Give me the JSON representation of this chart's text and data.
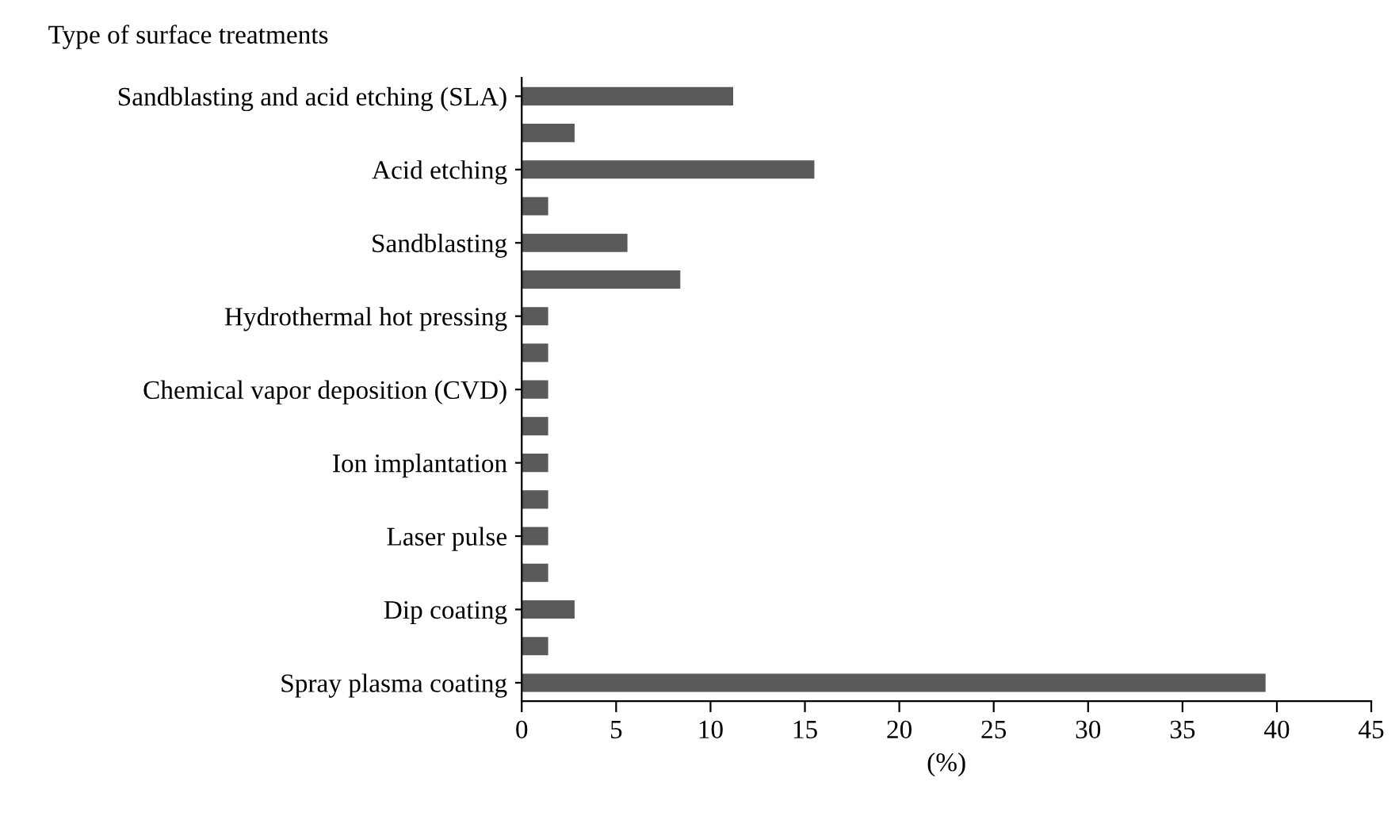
{
  "chart_data": {
    "type": "bar",
    "orientation": "horizontal",
    "ylabel": "Type of surface treatments",
    "xlabel": "(%)",
    "categories": [
      "Sandblasting and acid etching (SLA)",
      null,
      "Acid etching",
      null,
      "Sandblasting",
      null,
      "Hydrothermal hot pressing",
      null,
      "Chemical vapor deposition (CVD)",
      null,
      "Ion implantation",
      null,
      "Laser pulse",
      null,
      "Dip coating",
      null,
      "Spray plasma coating"
    ],
    "values": [
      11.2,
      2.8,
      15.5,
      1.4,
      5.6,
      8.4,
      1.4,
      1.4,
      1.4,
      1.4,
      1.4,
      1.4,
      1.4,
      1.4,
      2.8,
      1.4,
      39.4
    ],
    "color": "#5a5a5a",
    "xlim": [
      0,
      45
    ],
    "xticks": [
      0,
      5,
      10,
      15,
      20,
      25,
      30,
      35,
      40,
      45
    ],
    "grid": false
  }
}
